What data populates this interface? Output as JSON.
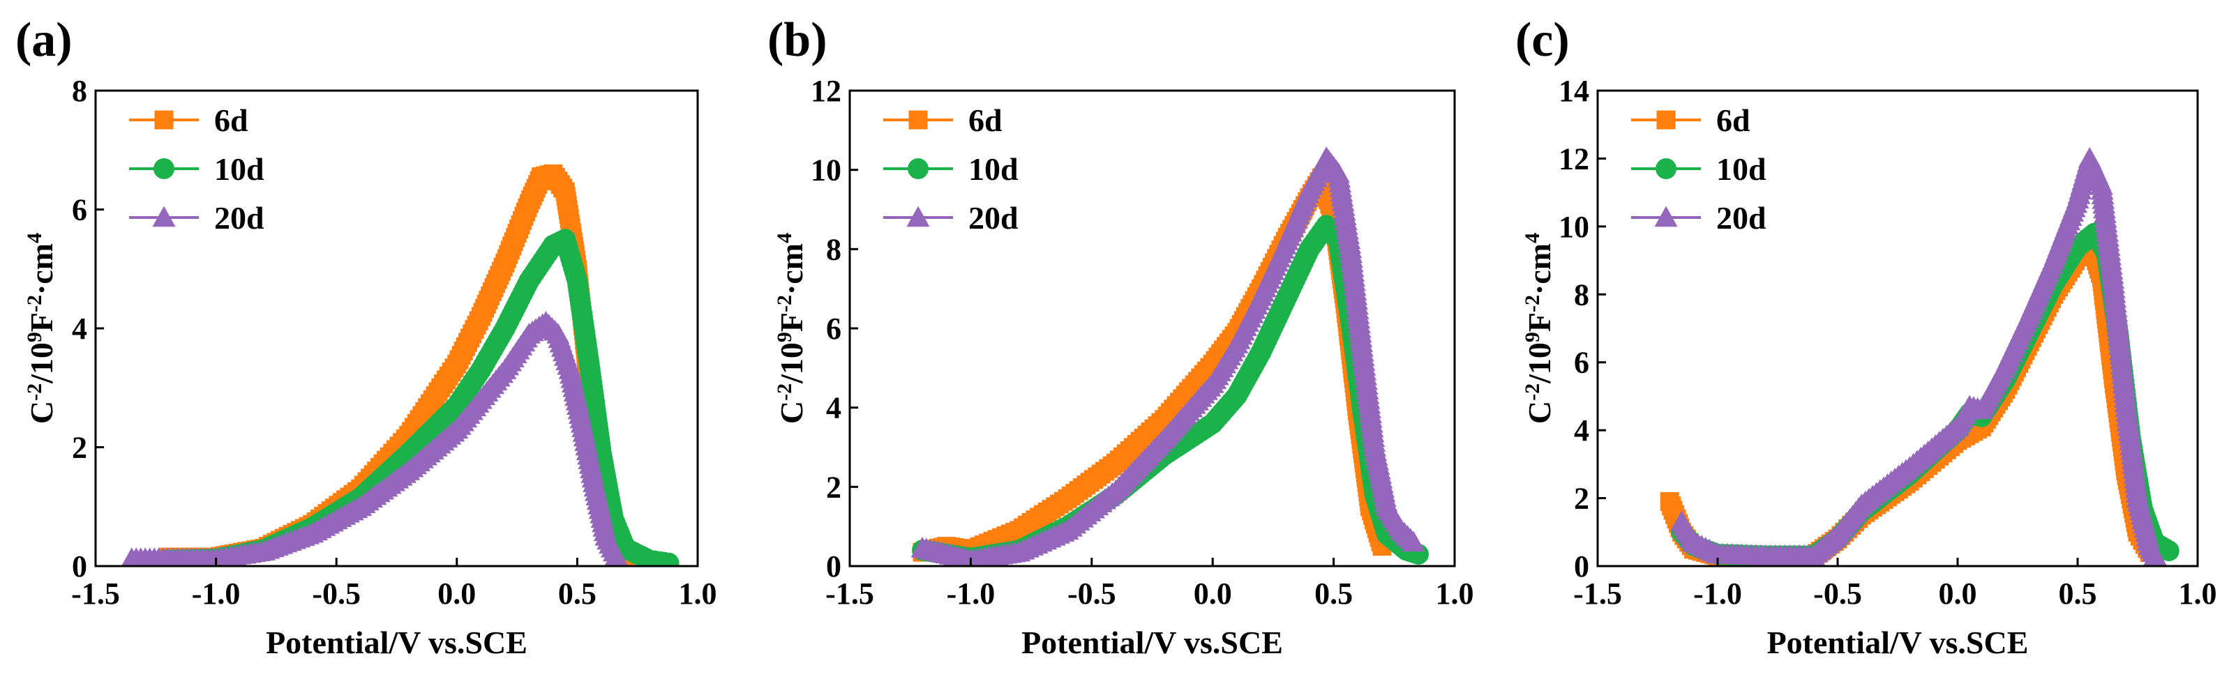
{
  "figure": {
    "colors": {
      "6d": "#FF7F0E",
      "10d": "#1BB24C",
      "20d": "#9467BD"
    },
    "markers": {
      "6d": "square",
      "10d": "circle",
      "20d": "triangle"
    }
  },
  "chart_data": [
    {
      "type": "scatter",
      "panel_label": "(a)",
      "xlabel": "Potential/V vs.SCE",
      "ylabel": {
        "base": "C",
        "sup1": "-2",
        "mid": "/10",
        "sup2": "9",
        "mid2": "F",
        "sup3": "-2",
        "tail": "·cm",
        "sup4": "4"
      },
      "xlim": [
        -1.5,
        1.0
      ],
      "ylim": [
        0,
        8
      ],
      "xticks": [
        -1.5,
        -1.0,
        -0.5,
        0.0,
        0.5,
        1.0
      ],
      "xtick_labels": [
        "-1.5",
        "-1.0",
        "-0.5",
        "0.0",
        "0.5",
        "1.0"
      ],
      "yticks": [
        0,
        2,
        4,
        6,
        8
      ],
      "ytick_labels": [
        "0",
        "2",
        "4",
        "6",
        "8"
      ],
      "legend_position": "top-left",
      "series": [
        {
          "name": "6d",
          "points": [
            [
              -1.2,
              0.15
            ],
            [
              -1.0,
              0.15
            ],
            [
              -0.8,
              0.3
            ],
            [
              -0.6,
              0.7
            ],
            [
              -0.4,
              1.3
            ],
            [
              -0.2,
              2.2
            ],
            [
              0.0,
              3.4
            ],
            [
              0.1,
              4.2
            ],
            [
              0.2,
              5.1
            ],
            [
              0.3,
              6.1
            ],
            [
              0.35,
              6.55
            ],
            [
              0.4,
              6.6
            ],
            [
              0.45,
              6.3
            ],
            [
              0.5,
              5.0
            ],
            [
              0.55,
              3.0
            ],
            [
              0.6,
              1.2
            ],
            [
              0.65,
              0.35
            ],
            [
              0.7,
              0.1
            ]
          ]
        },
        {
          "name": "10d",
          "points": [
            [
              -1.2,
              0.1
            ],
            [
              -1.0,
              0.12
            ],
            [
              -0.8,
              0.28
            ],
            [
              -0.6,
              0.65
            ],
            [
              -0.4,
              1.15
            ],
            [
              -0.2,
              1.9
            ],
            [
              0.0,
              2.7
            ],
            [
              0.1,
              3.3
            ],
            [
              0.2,
              4.0
            ],
            [
              0.3,
              4.8
            ],
            [
              0.4,
              5.4
            ],
            [
              0.45,
              5.5
            ],
            [
              0.5,
              4.8
            ],
            [
              0.55,
              3.4
            ],
            [
              0.6,
              1.9
            ],
            [
              0.65,
              0.8
            ],
            [
              0.7,
              0.3
            ],
            [
              0.8,
              0.1
            ],
            [
              0.88,
              0.05
            ]
          ]
        },
        {
          "name": "20d",
          "points": [
            [
              -1.35,
              0.12
            ],
            [
              -1.2,
              0.12
            ],
            [
              -1.0,
              0.12
            ],
            [
              -0.8,
              0.25
            ],
            [
              -0.6,
              0.55
            ],
            [
              -0.4,
              1.0
            ],
            [
              -0.2,
              1.6
            ],
            [
              0.0,
              2.3
            ],
            [
              0.1,
              2.8
            ],
            [
              0.2,
              3.3
            ],
            [
              0.3,
              3.9
            ],
            [
              0.37,
              4.1
            ],
            [
              0.42,
              3.9
            ],
            [
              0.47,
              3.3
            ],
            [
              0.52,
              2.4
            ],
            [
              0.57,
              1.4
            ],
            [
              0.62,
              0.5
            ],
            [
              0.67,
              0.1
            ]
          ]
        }
      ]
    },
    {
      "type": "scatter",
      "panel_label": "(b)",
      "xlabel": "Potential/V vs.SCE",
      "ylabel": {
        "base": "C",
        "sup1": "-2",
        "mid": "/10",
        "sup2": "9",
        "mid2": "F",
        "sup3": "-2",
        "tail": "·cm",
        "sup4": "4"
      },
      "xlim": [
        -1.5,
        1.0
      ],
      "ylim": [
        0,
        12
      ],
      "xticks": [
        -1.5,
        -1.0,
        -0.5,
        0.0,
        0.5,
        1.0
      ],
      "xtick_labels": [
        "-1.5",
        "-1.0",
        "-0.5",
        "0.0",
        "0.5",
        "1.0"
      ],
      "yticks": [
        0,
        2,
        4,
        6,
        8,
        10,
        12
      ],
      "ytick_labels": [
        "0",
        "2",
        "4",
        "6",
        "8",
        "10",
        "12"
      ],
      "legend_position": "top-left",
      "series": [
        {
          "name": "6d",
          "points": [
            [
              -1.2,
              0.35
            ],
            [
              -1.1,
              0.5
            ],
            [
              -1.0,
              0.4
            ],
            [
              -0.8,
              0.9
            ],
            [
              -0.6,
              1.7
            ],
            [
              -0.4,
              2.6
            ],
            [
              -0.2,
              3.7
            ],
            [
              0.0,
              5.1
            ],
            [
              0.1,
              5.9
            ],
            [
              0.2,
              7.0
            ],
            [
              0.3,
              8.2
            ],
            [
              0.4,
              9.3
            ],
            [
              0.45,
              9.8
            ],
            [
              0.5,
              8.8
            ],
            [
              0.55,
              6.5
            ],
            [
              0.6,
              3.8
            ],
            [
              0.65,
              1.5
            ],
            [
              0.7,
              0.5
            ]
          ]
        },
        {
          "name": "10d",
          "points": [
            [
              -1.2,
              0.4
            ],
            [
              -1.1,
              0.3
            ],
            [
              -1.0,
              0.2
            ],
            [
              -0.8,
              0.4
            ],
            [
              -0.6,
              1.0
            ],
            [
              -0.4,
              1.8
            ],
            [
              -0.2,
              2.8
            ],
            [
              0.0,
              3.6
            ],
            [
              0.1,
              4.3
            ],
            [
              0.2,
              5.4
            ],
            [
              0.3,
              6.7
            ],
            [
              0.4,
              8.0
            ],
            [
              0.47,
              8.6
            ],
            [
              0.52,
              8.2
            ],
            [
              0.57,
              6.2
            ],
            [
              0.62,
              3.9
            ],
            [
              0.67,
              1.8
            ],
            [
              0.72,
              0.8
            ],
            [
              0.8,
              0.4
            ],
            [
              0.85,
              0.3
            ]
          ]
        },
        {
          "name": "20d",
          "points": [
            [
              -1.2,
              0.45
            ],
            [
              -1.1,
              0.3
            ],
            [
              -1.0,
              0.15
            ],
            [
              -0.8,
              0.35
            ],
            [
              -0.6,
              0.9
            ],
            [
              -0.4,
              1.9
            ],
            [
              -0.2,
              3.2
            ],
            [
              0.0,
              4.6
            ],
            [
              0.1,
              5.6
            ],
            [
              0.2,
              6.8
            ],
            [
              0.3,
              8.1
            ],
            [
              0.4,
              9.5
            ],
            [
              0.47,
              10.3
            ],
            [
              0.52,
              9.9
            ],
            [
              0.57,
              8.0
            ],
            [
              0.62,
              5.4
            ],
            [
              0.67,
              3.0
            ],
            [
              0.72,
              1.5
            ],
            [
              0.78,
              0.9
            ],
            [
              0.83,
              0.6
            ]
          ]
        }
      ]
    },
    {
      "type": "scatter",
      "panel_label": "(c)",
      "xlabel": "Potential/V vs.SCE",
      "ylabel": {
        "base": "C",
        "sup1": "-2",
        "mid": "/10",
        "sup2": "9",
        "mid2": "F",
        "sup3": "-2",
        "tail": "·cm",
        "sup4": "4"
      },
      "xlim": [
        -1.5,
        1.0
      ],
      "ylim": [
        0,
        14
      ],
      "xticks": [
        -1.5,
        -1.0,
        -0.5,
        0.0,
        0.5,
        1.0
      ],
      "xtick_labels": [
        "-1.5",
        "-1.0",
        "-0.5",
        "0.0",
        "0.5",
        "1.0"
      ],
      "yticks": [
        0,
        2,
        4,
        6,
        8,
        10,
        12,
        14
      ],
      "ytick_labels": [
        "0",
        "2",
        "4",
        "6",
        "8",
        "10",
        "12",
        "14"
      ],
      "legend_position": "top-left",
      "series": [
        {
          "name": "6d",
          "points": [
            [
              -1.2,
              1.9
            ],
            [
              -1.15,
              1.0
            ],
            [
              -1.1,
              0.5
            ],
            [
              -1.0,
              0.3
            ],
            [
              -0.8,
              0.25
            ],
            [
              -0.6,
              0.3
            ],
            [
              -0.5,
              0.8
            ],
            [
              -0.4,
              1.5
            ],
            [
              -0.2,
              2.5
            ],
            [
              0.0,
              3.7
            ],
            [
              0.1,
              4.1
            ],
            [
              0.2,
              5.2
            ],
            [
              0.3,
              6.6
            ],
            [
              0.4,
              8.0
            ],
            [
              0.5,
              9.1
            ],
            [
              0.55,
              9.6
            ],
            [
              0.6,
              8.5
            ],
            [
              0.65,
              5.5
            ],
            [
              0.7,
              2.8
            ],
            [
              0.75,
              1.0
            ],
            [
              0.8,
              0.4
            ]
          ]
        },
        {
          "name": "10d",
          "points": [
            [
              -1.15,
              1.0
            ],
            [
              -1.1,
              0.6
            ],
            [
              -1.0,
              0.35
            ],
            [
              -0.8,
              0.3
            ],
            [
              -0.6,
              0.3
            ],
            [
              -0.5,
              0.8
            ],
            [
              -0.4,
              1.6
            ],
            [
              -0.2,
              2.7
            ],
            [
              0.0,
              4.0
            ],
            [
              0.05,
              4.5
            ],
            [
              0.1,
              4.4
            ],
            [
              0.2,
              5.5
            ],
            [
              0.3,
              6.9
            ],
            [
              0.4,
              8.3
            ],
            [
              0.5,
              9.4
            ],
            [
              0.57,
              9.8
            ],
            [
              0.62,
              9.2
            ],
            [
              0.67,
              6.8
            ],
            [
              0.72,
              3.8
            ],
            [
              0.77,
              1.7
            ],
            [
              0.82,
              0.7
            ],
            [
              0.88,
              0.45
            ]
          ]
        },
        {
          "name": "20d",
          "points": [
            [
              -1.15,
              1.3
            ],
            [
              -1.1,
              0.7
            ],
            [
              -1.0,
              0.35
            ],
            [
              -0.8,
              0.3
            ],
            [
              -0.6,
              0.3
            ],
            [
              -0.5,
              0.9
            ],
            [
              -0.4,
              1.8
            ],
            [
              -0.2,
              2.9
            ],
            [
              0.0,
              4.1
            ],
            [
              0.05,
              4.7
            ],
            [
              0.1,
              4.6
            ],
            [
              0.2,
              5.9
            ],
            [
              0.3,
              7.4
            ],
            [
              0.4,
              9.0
            ],
            [
              0.5,
              10.8
            ],
            [
              0.55,
              12.0
            ],
            [
              0.6,
              11.2
            ],
            [
              0.65,
              8.3
            ],
            [
              0.7,
              4.8
            ],
            [
              0.75,
              2.0
            ],
            [
              0.8,
              0.6
            ],
            [
              0.83,
              0.2
            ]
          ]
        }
      ]
    }
  ]
}
